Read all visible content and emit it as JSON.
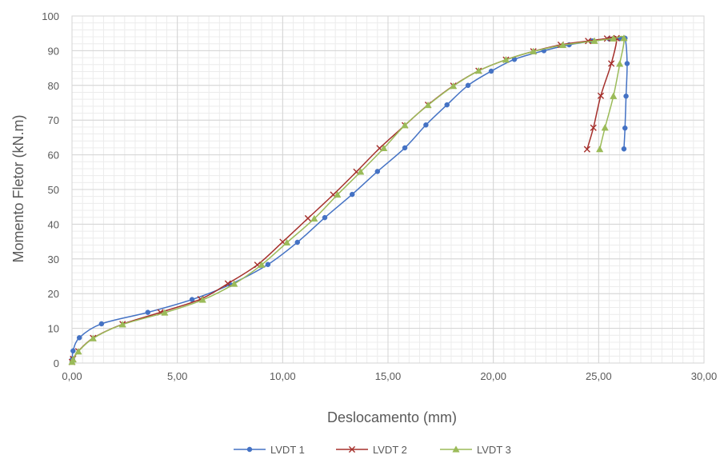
{
  "chart_data": {
    "type": "line",
    "title": "",
    "xlabel": "Deslocamento (mm)",
    "ylabel": "Momento Fletor (kN.m)",
    "xlim": [
      0,
      30
    ],
    "ylim": [
      0,
      100
    ],
    "x_ticks": [
      "0,00",
      "5,00",
      "10,00",
      "15,00",
      "20,00",
      "25,00",
      "30,00"
    ],
    "y_ticks": [
      "0",
      "10",
      "20",
      "30",
      "40",
      "50",
      "60",
      "70",
      "80",
      "90",
      "100"
    ],
    "grid": true,
    "legend_position": "bottom",
    "series": [
      {
        "name": "LVDT 1",
        "color": "#4472C4",
        "marker": "circle",
        "x": [
          0.0,
          0.02,
          0.05,
          0.35,
          1.4,
          3.6,
          5.7,
          7.5,
          9.3,
          10.7,
          12.0,
          13.3,
          14.5,
          15.8,
          16.8,
          17.8,
          18.8,
          19.9,
          21.0,
          22.4,
          23.6,
          24.7,
          25.5,
          26.0,
          26.25,
          26.35,
          26.3,
          26.25,
          26.2
        ],
        "y": [
          0.3,
          1.2,
          3.5,
          7.3,
          11.3,
          14.6,
          18.3,
          22.6,
          28.4,
          34.8,
          41.9,
          48.6,
          55.2,
          62.0,
          68.6,
          74.4,
          80.0,
          84.1,
          87.5,
          90.0,
          91.7,
          92.8,
          93.4,
          93.5,
          93.6,
          86.3,
          76.9,
          67.7,
          61.7
        ]
      },
      {
        "name": "LVDT 2",
        "color": "#A5302C",
        "marker": "x",
        "x": [
          0.0,
          0.05,
          0.3,
          1.0,
          2.4,
          4.2,
          6.1,
          7.4,
          8.8,
          10.0,
          11.2,
          12.4,
          13.5,
          14.6,
          15.8,
          16.9,
          18.1,
          19.3,
          20.6,
          21.9,
          23.2,
          24.5,
          25.4,
          25.85,
          25.6,
          25.1,
          24.75,
          24.45
        ],
        "y": [
          0.3,
          1.2,
          3.4,
          7.2,
          11.2,
          14.6,
          18.4,
          22.9,
          28.3,
          34.9,
          41.7,
          48.5,
          55.1,
          61.9,
          68.5,
          74.4,
          79.9,
          84.2,
          87.4,
          89.8,
          91.7,
          92.8,
          93.5,
          93.6,
          86.3,
          77.0,
          67.8,
          61.6
        ]
      },
      {
        "name": "LVDT 3",
        "color": "#9BBB59",
        "marker": "triangle",
        "x": [
          0.0,
          0.05,
          0.3,
          1.0,
          2.4,
          4.4,
          6.2,
          7.7,
          9.0,
          10.2,
          11.5,
          12.6,
          13.7,
          14.8,
          15.8,
          16.9,
          18.1,
          19.3,
          20.6,
          21.9,
          23.3,
          24.8,
          25.7,
          26.2,
          26.0,
          25.7,
          25.3,
          25.05
        ],
        "y": [
          0.3,
          1.0,
          3.3,
          7.1,
          11.1,
          14.5,
          18.2,
          22.8,
          28.3,
          34.7,
          41.6,
          48.5,
          55.1,
          61.9,
          68.5,
          74.3,
          79.8,
          84.2,
          87.4,
          89.8,
          91.6,
          92.8,
          93.5,
          93.6,
          86.2,
          76.9,
          67.8,
          61.6
        ]
      }
    ]
  }
}
